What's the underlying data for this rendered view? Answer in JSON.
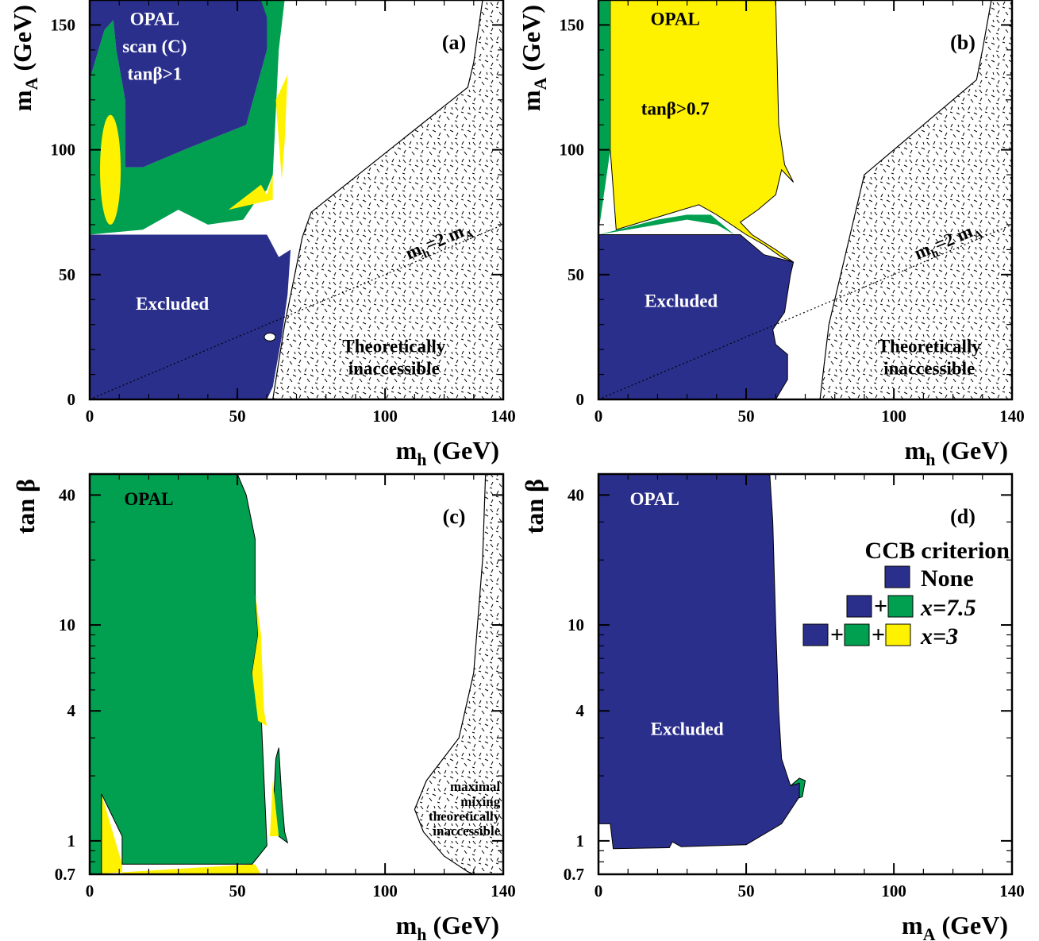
{
  "colors": {
    "blue": "#2b2f8c",
    "green": "#00a050",
    "yellow": "#fff200",
    "outline": "#000000"
  },
  "chart_data": [
    {
      "type": "area",
      "panel": "(a)",
      "xlabel_main": "m",
      "xlabel_sub": "h",
      "xlabel_unit": " (GeV)",
      "ylabel_main": "m",
      "ylabel_sub": "A",
      "ylabel_unit": " (GeV)",
      "xlim": [
        0,
        140
      ],
      "ylim": [
        0,
        160
      ],
      "xticks": [
        "0",
        "50",
        "100",
        "140"
      ],
      "yticks": [
        "0",
        "50",
        "100",
        "150"
      ],
      "texts": {
        "opal": "OPAL",
        "scan": "scan (C)",
        "tanb": "tanβ>1",
        "excluded": "Excluded",
        "theo1": "Theoretically",
        "theo2": "inaccessible",
        "line_main": "m",
        "line_sub1": "h",
        "line_mid": "=2 m",
        "line_sub2": "A"
      },
      "reference_line": {
        "label": "mh=2mA",
        "x": [
          0,
          140
        ],
        "y": [
          0,
          70
        ]
      },
      "regions": {
        "blue_excluded": [
          [
            0,
            0
          ],
          [
            60,
            0
          ],
          [
            62,
            5
          ],
          [
            65,
            25
          ],
          [
            67,
            42
          ],
          [
            68,
            60
          ],
          [
            64,
            57
          ],
          [
            60,
            66
          ],
          [
            0,
            66
          ]
        ],
        "blue_upper": [
          [
            0,
            128
          ],
          [
            2,
            136
          ],
          [
            5,
            148
          ],
          [
            8,
            152
          ],
          [
            9,
            140
          ],
          [
            12,
            120
          ],
          [
            12,
            93
          ],
          [
            18,
            93
          ],
          [
            32,
            100
          ],
          [
            53,
            110
          ],
          [
            60,
            140
          ],
          [
            60,
            153
          ],
          [
            58,
            160
          ],
          [
            0,
            160
          ]
        ],
        "green_band": [
          [
            0,
            66
          ],
          [
            18,
            68
          ],
          [
            30,
            76
          ],
          [
            40,
            70
          ],
          [
            52,
            72
          ],
          [
            56,
            79
          ],
          [
            60,
            84
          ],
          [
            62,
            90
          ],
          [
            64,
            140
          ],
          [
            66,
            160
          ],
          [
            58,
            160
          ],
          [
            60,
            140
          ],
          [
            53,
            110
          ],
          [
            32,
            100
          ],
          [
            18,
            93
          ],
          [
            12,
            93
          ],
          [
            12,
            120
          ],
          [
            9,
            140
          ],
          [
            8,
            152
          ],
          [
            5,
            148
          ],
          [
            2,
            136
          ],
          [
            0,
            128
          ]
        ],
        "yellow_spots": [
          {
            "type": "ellipse",
            "cx": 7,
            "cy": 92,
            "rx": 3.5,
            "ry": 22
          },
          {
            "type": "polygon",
            "pts": [
              [
                47,
                76
              ],
              [
                58,
                86
              ],
              [
                60,
                82
              ],
              [
                62,
                90
              ],
              [
                62,
                80
              ]
            ]
          },
          {
            "type": "polygon",
            "pts": [
              [
                63,
                120
              ],
              [
                65,
                88
              ],
              [
                66,
                103
              ],
              [
                67,
                130
              ]
            ]
          }
        ],
        "theoretically_inaccessible": [
          [
            62,
            0
          ],
          [
            66,
            30
          ],
          [
            72,
            65
          ],
          [
            75,
            75
          ],
          [
            128,
            125
          ],
          [
            130,
            135
          ],
          [
            133,
            160
          ],
          [
            140,
            160
          ],
          [
            140,
            0
          ]
        ]
      }
    },
    {
      "type": "area",
      "panel": "(b)",
      "xlabel_main": "m",
      "xlabel_sub": "h",
      "xlabel_unit": " (GeV)",
      "ylabel_main": "m",
      "ylabel_sub": "A",
      "ylabel_unit": " (GeV)",
      "xlim": [
        0,
        140
      ],
      "ylim": [
        0,
        160
      ],
      "xticks": [
        "0",
        "50",
        "100",
        "140"
      ],
      "yticks": [
        "0",
        "50",
        "100",
        "150"
      ],
      "texts": {
        "opal": "OPAL",
        "tanb": "tanβ>0.7",
        "excluded": "Excluded",
        "theo1": "Theoretically",
        "theo2": "inaccessible",
        "line_main": "m",
        "line_sub1": "h",
        "line_mid": "=2 m",
        "line_sub2": "A"
      },
      "reference_line": {
        "label": "mh=2mA",
        "x": [
          0,
          140
        ],
        "y": [
          0,
          70
        ]
      },
      "regions": {
        "yellow_main": [
          [
            4,
            160
          ],
          [
            6,
            128
          ],
          [
            8,
            118
          ],
          [
            10,
            110
          ],
          [
            10,
            96
          ],
          [
            16,
            160
          ]
        ],
        "blue_excluded": [
          [
            0,
            0
          ],
          [
            60,
            0
          ],
          [
            64,
            8
          ],
          [
            64,
            18
          ],
          [
            60,
            22
          ],
          [
            59,
            28
          ],
          [
            63,
            35
          ],
          [
            65,
            50
          ],
          [
            66,
            55
          ],
          [
            56,
            58
          ],
          [
            48,
            66
          ],
          [
            0,
            66
          ]
        ],
        "green_upper": [
          [
            0,
            160
          ],
          [
            4,
            160
          ],
          [
            4,
            100
          ],
          [
            1,
            75
          ],
          [
            0,
            67
          ]
        ],
        "green_band": [
          [
            0,
            66
          ],
          [
            10,
            69
          ],
          [
            20,
            72
          ],
          [
            30,
            74
          ],
          [
            38,
            74
          ],
          [
            46,
            66
          ],
          [
            40,
            70
          ],
          [
            30,
            72
          ],
          [
            20,
            70
          ],
          [
            10,
            68
          ]
        ],
        "yellow_big": [
          [
            4,
            160
          ],
          [
            4,
            100
          ],
          [
            6,
            68
          ],
          [
            20,
            73
          ],
          [
            34,
            78
          ],
          [
            40,
            74
          ],
          [
            50,
            66
          ],
          [
            56,
            62
          ],
          [
            62,
            57
          ],
          [
            66,
            55
          ],
          [
            60,
            60
          ],
          [
            52,
            66
          ],
          [
            48,
            71
          ],
          [
            54,
            76
          ],
          [
            60,
            82
          ],
          [
            62,
            92
          ],
          [
            66,
            87
          ],
          [
            63,
            94
          ],
          [
            61,
            110
          ],
          [
            60,
            160
          ]
        ],
        "theoretically_inaccessible": [
          [
            75,
            0
          ],
          [
            78,
            30
          ],
          [
            84,
            60
          ],
          [
            90,
            90
          ],
          [
            128,
            128
          ],
          [
            130,
            140
          ],
          [
            133,
            160
          ],
          [
            140,
            160
          ],
          [
            140,
            0
          ]
        ]
      }
    },
    {
      "type": "area",
      "panel": "(c)",
      "xlabel_main": "m",
      "xlabel_sub": "h",
      "xlabel_unit": " (GeV)",
      "ylabel": "tan β",
      "xlim": [
        0,
        140
      ],
      "ylim": [
        0.7,
        50
      ],
      "yscale": "log",
      "xticks": [
        "0",
        "50",
        "100",
        "140"
      ],
      "yticks": [
        "0.7",
        "1",
        "4",
        "10",
        "40"
      ],
      "texts": {
        "opal": "OPAL",
        "mm1": "maximal",
        "mm2": "mixing",
        "mm3": "theoretically",
        "mm4": "inaccessible"
      },
      "regions": {
        "yellow_base": [
          [
            0,
            0.7
          ],
          [
            4,
            0.7
          ],
          [
            4,
            1.65
          ],
          [
            11,
            0.78
          ],
          [
            11,
            0.7
          ],
          [
            58,
            0.7
          ],
          [
            56,
            0.78
          ]
        ],
        "green_main": [
          [
            0,
            50
          ],
          [
            50,
            50
          ],
          [
            53,
            40
          ],
          [
            56,
            25
          ],
          [
            56,
            14
          ],
          [
            57,
            9
          ],
          [
            55,
            6
          ],
          [
            58,
            4
          ],
          [
            60,
            0.95
          ],
          [
            55,
            0.78
          ],
          [
            11,
            0.78
          ],
          [
            11,
            1.05
          ],
          [
            4,
            1.65
          ],
          [
            4,
            0.7
          ],
          [
            0,
            0.7
          ]
        ],
        "yellow_edge": [
          [
            56,
            14
          ],
          [
            58,
            9
          ],
          [
            59,
            4
          ],
          [
            60,
            3.4
          ],
          [
            57,
            3.6
          ],
          [
            55,
            6
          ],
          [
            57,
            9
          ]
        ],
        "green_spike": [
          [
            62,
            1.3
          ],
          [
            63,
            2.4
          ],
          [
            64,
            2.7
          ],
          [
            65,
            1.6
          ],
          [
            66,
            1.1
          ],
          [
            67,
            0.98
          ],
          [
            64,
            1.05
          ]
        ],
        "yellow_spike": [
          [
            61,
            1.05
          ],
          [
            62,
            1.9
          ],
          [
            63,
            1.4
          ],
          [
            64,
            1.05
          ]
        ],
        "theoretically_inaccessible": [
          [
            134,
            50
          ],
          [
            133,
            20
          ],
          [
            130,
            6
          ],
          [
            125,
            3
          ],
          [
            114,
            1.9
          ],
          [
            110,
            1.4
          ],
          [
            113,
            1.1
          ],
          [
            120,
            0.85
          ],
          [
            128,
            0.72
          ],
          [
            130,
            0.7
          ],
          [
            140,
            0.7
          ],
          [
            140,
            50
          ]
        ]
      }
    },
    {
      "type": "area",
      "panel": "(d)",
      "xlabel_main": "m",
      "xlabel_sub": "A",
      "xlabel_unit": " (GeV)",
      "ylabel": "tan β",
      "xlim": [
        0,
        140
      ],
      "ylim": [
        0.7,
        50
      ],
      "yscale": "log",
      "xticks": [
        "0",
        "50",
        "100",
        "140"
      ],
      "yticks": [
        "0.7",
        "1",
        "4",
        "10",
        "40"
      ],
      "texts": {
        "opal": "OPAL",
        "excluded": "Excluded"
      },
      "legend": {
        "title": "CCB criterion",
        "entries": [
          {
            "label": "None"
          },
          {
            "label": "x=7.5"
          },
          {
            "label": "x=3"
          }
        ]
      },
      "regions": {
        "blue_excluded": [
          [
            0,
            50
          ],
          [
            58,
            50
          ],
          [
            59,
            30
          ],
          [
            60,
            10
          ],
          [
            61,
            4
          ],
          [
            62,
            2.4
          ],
          [
            65,
            1.8
          ],
          [
            68,
            1.85
          ],
          [
            68,
            1.6
          ],
          [
            62,
            1.2
          ],
          [
            50,
            0.96
          ],
          [
            40,
            0.95
          ],
          [
            28,
            0.94
          ],
          [
            25,
            0.99
          ],
          [
            24,
            0.93
          ],
          [
            5,
            0.92
          ],
          [
            4,
            1.2
          ],
          [
            0,
            1.2
          ]
        ],
        "green_spot": [
          [
            65,
            1.8
          ],
          [
            68,
            1.95
          ],
          [
            70,
            1.9
          ],
          [
            69,
            1.6
          ],
          [
            66,
            1.55
          ]
        ]
      }
    }
  ]
}
